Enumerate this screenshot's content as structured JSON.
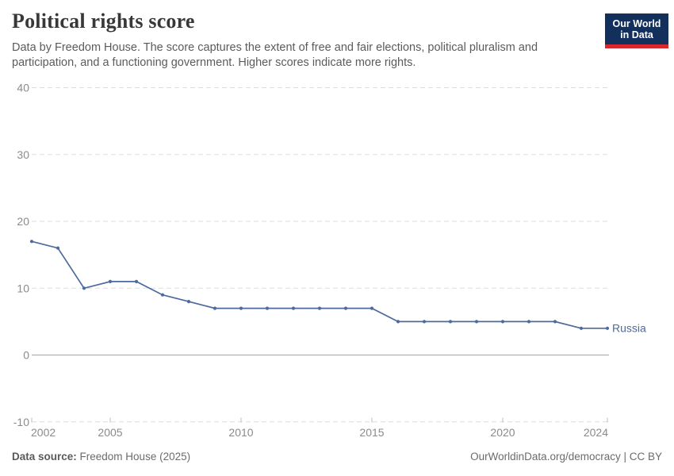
{
  "header": {
    "title": "Political rights score",
    "subtitle": "Data by Freedom House. The score captures the extent of free and fair elections, political pluralism and participation, and a functioning government. Higher scores indicate more rights.",
    "logo": {
      "line1": "Our World",
      "line2": "in Data",
      "bg_color": "#12305b",
      "accent_color": "#d7262c"
    }
  },
  "chart_data": {
    "type": "line",
    "title": "Political rights score",
    "x": [
      2002,
      2003,
      2004,
      2005,
      2006,
      2007,
      2008,
      2009,
      2010,
      2011,
      2012,
      2013,
      2014,
      2015,
      2016,
      2017,
      2018,
      2019,
      2020,
      2021,
      2022,
      2023,
      2024
    ],
    "series": [
      {
        "name": "Russia",
        "color": "#4C6A9C",
        "values": [
          17,
          16,
          10,
          11,
          11,
          9,
          8,
          7,
          7,
          7,
          7,
          7,
          7,
          7,
          5,
          5,
          5,
          5,
          5,
          5,
          5,
          4,
          4
        ]
      }
    ],
    "x_ticks": [
      2002,
      2005,
      2010,
      2015,
      2020,
      2024
    ],
    "y_ticks": [
      -10,
      0,
      10,
      20,
      30,
      40
    ],
    "xlim": [
      2002,
      2024
    ],
    "ylim": [
      -10,
      40
    ],
    "grid": "horizontal-dashed",
    "legend_position": "end-of-line",
    "xlabel": "",
    "ylabel": ""
  },
  "footer": {
    "source_label": "Data source:",
    "source_value": " Freedom House (2025)",
    "right_text": "OurWorldinData.org/democracy | CC BY"
  }
}
